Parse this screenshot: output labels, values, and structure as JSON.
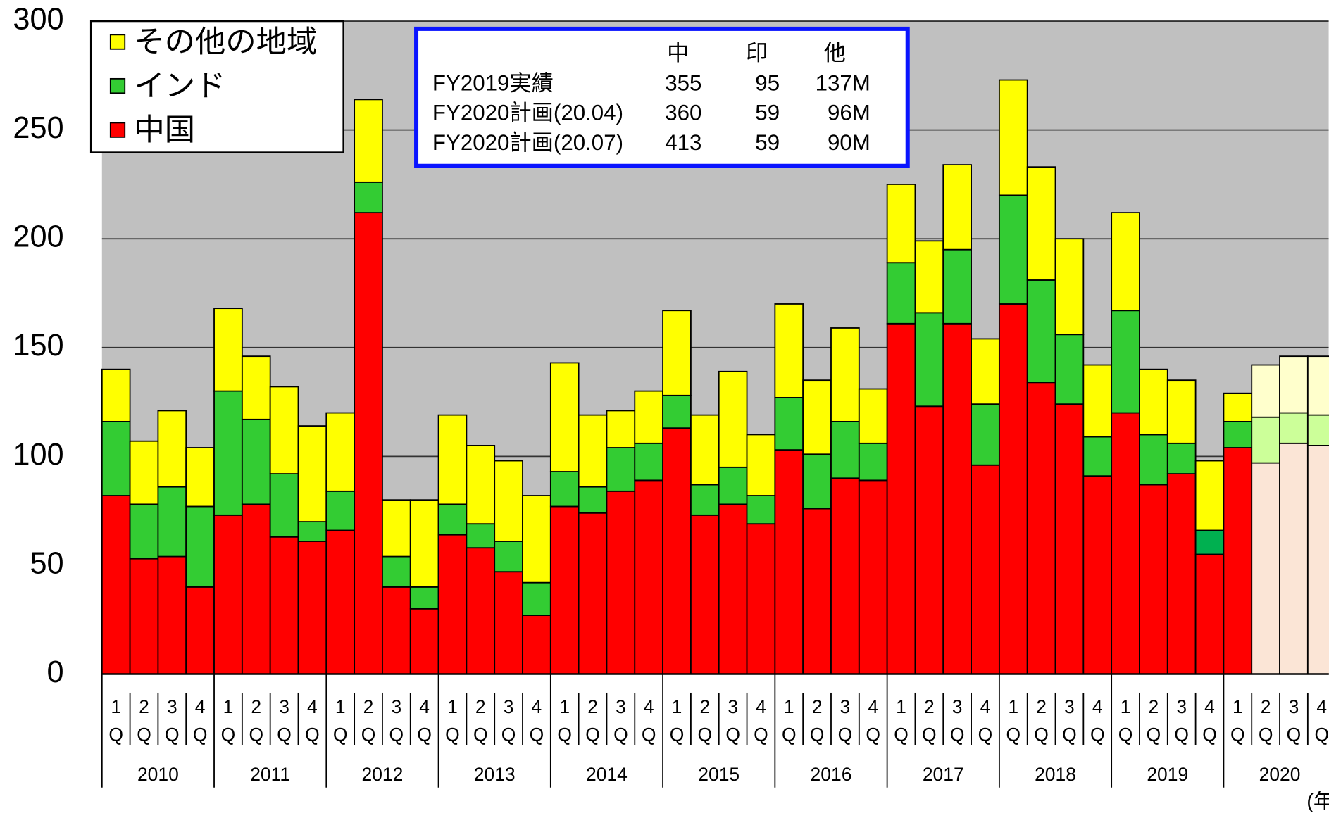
{
  "chart_data": {
    "type": "stacked_bar",
    "categories": [
      "1Q",
      "2Q",
      "3Q",
      "4Q",
      "1Q",
      "2Q",
      "3Q",
      "4Q",
      "1Q",
      "2Q",
      "3Q",
      "4Q",
      "1Q",
      "2Q",
      "3Q",
      "4Q",
      "1Q",
      "2Q",
      "3Q",
      "4Q",
      "1Q",
      "2Q",
      "3Q",
      "4Q",
      "1Q",
      "2Q",
      "3Q",
      "4Q",
      "1Q",
      "2Q",
      "3Q",
      "4Q",
      "1Q",
      "2Q",
      "3Q",
      "4Q",
      "1Q",
      "2Q",
      "3Q",
      "4Q",
      "1Q",
      "2Q",
      "3Q",
      "4Q"
    ],
    "year_groups": [
      "2010",
      "2011",
      "2012",
      "2013",
      "2014",
      "2015",
      "2016",
      "2017",
      "2018",
      "2019",
      "2020"
    ],
    "x_label": "(年)",
    "series": [
      {
        "name": "中国",
        "color": "#ff0000",
        "point_colors": {
          "41": "#fbe5d6",
          "42": "#fbe5d6",
          "43": "#fbe5d6"
        },
        "values": [
          82,
          53,
          54,
          40,
          73,
          78,
          63,
          61,
          66,
          212,
          40,
          30,
          64,
          58,
          47,
          27,
          77,
          74,
          84,
          89,
          113,
          73,
          78,
          69,
          103,
          76,
          90,
          89,
          161,
          123,
          161,
          96,
          170,
          134,
          124,
          91,
          120,
          87,
          92,
          55,
          104,
          97,
          106,
          105
        ]
      },
      {
        "name": "インド",
        "color": "#33cc33",
        "point_colors": {
          "39": "#00b050",
          "41": "#ccff99",
          "42": "#ccff99",
          "43": "#ccff99"
        },
        "values": [
          34,
          25,
          32,
          37,
          57,
          39,
          29,
          9,
          18,
          14,
          14,
          10,
          14,
          11,
          14,
          15,
          16,
          12,
          20,
          17,
          15,
          14,
          17,
          13,
          24,
          25,
          26,
          17,
          28,
          43,
          34,
          28,
          50,
          47,
          32,
          18,
          47,
          23,
          14,
          11,
          12,
          21,
          14,
          14
        ]
      },
      {
        "name": "その他の地域",
        "color": "#ffff00",
        "point_colors": {
          "41": "#ffffcc",
          "42": "#ffffcc",
          "43": "#ffffcc"
        },
        "values": [
          24,
          29,
          35,
          27,
          38,
          29,
          40,
          44,
          36,
          38,
          26,
          40,
          41,
          36,
          37,
          40,
          50,
          33,
          17,
          24,
          39,
          32,
          44,
          28,
          43,
          34,
          43,
          25,
          36,
          33,
          39,
          30,
          53,
          52,
          44,
          33,
          45,
          30,
          29,
          32,
          13,
          24,
          26,
          27
        ]
      }
    ],
    "ylim": [
      0,
      300
    ],
    "yticks": [
      0,
      50,
      100,
      150,
      200,
      250,
      300
    ],
    "grid": true,
    "legend": "top-left",
    "annotation_table": {
      "header": [
        "中",
        "印",
        "他"
      ],
      "rows": [
        {
          "label": "FY2019実績",
          "cells": [
            "355",
            "95",
            "137M"
          ]
        },
        {
          "label": "FY2020計画(20.04)",
          "cells": [
            "360",
            "59",
            "96M"
          ]
        },
        {
          "label": "FY2020計画(20.07)",
          "cells": [
            "413",
            "59",
            "90M"
          ]
        }
      ]
    }
  }
}
